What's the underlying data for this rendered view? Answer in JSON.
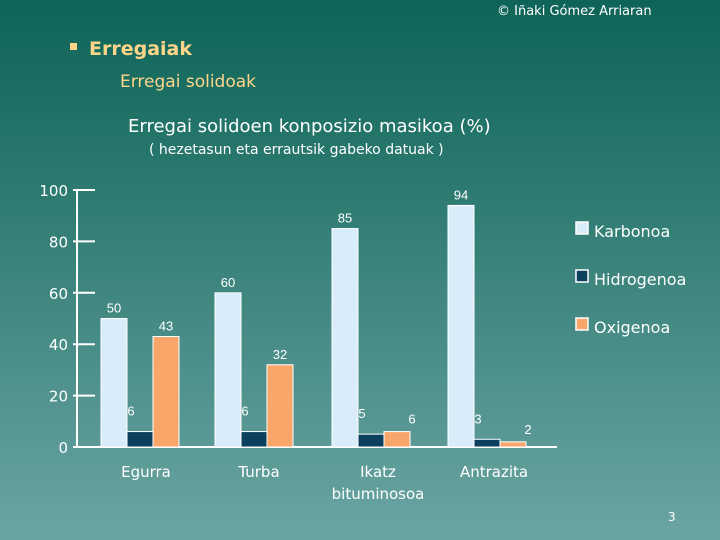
{
  "header": {
    "copyright": "© Iñaki Gómez Arriaran",
    "section": "Erregaiak",
    "subsection": "Erregai solidoak",
    "page_number": "3"
  },
  "chart_data": {
    "type": "bar",
    "title": "Erregai solidoen konposizio masikoa (%)",
    "subtitle": "( hezetasun eta errautsik gabeko datuak )",
    "categories": [
      [
        "Egurra"
      ],
      [
        "Turba"
      ],
      [
        "Ikatz",
        "bituminosoa"
      ],
      [
        "Antrazita"
      ]
    ],
    "ylim": [
      0,
      100
    ],
    "yticks": [
      "0",
      "20",
      "40",
      "60",
      "80",
      "100"
    ],
    "legend_position": "right",
    "series": [
      {
        "name": "Karbonoa",
        "color": "#d8ecfa",
        "values": [
          50,
          60,
          85,
          94
        ],
        "labels": [
          "50",
          "60",
          "85",
          "94"
        ]
      },
      {
        "name": "Hidrogenoa",
        "color": "#0b3f5e",
        "values": [
          6,
          6,
          5,
          3
        ],
        "labels": [
          "6",
          "6",
          "5",
          "3"
        ]
      },
      {
        "name": "Oxigenoa",
        "color": "#f9a66b",
        "values": [
          43,
          32,
          6,
          2
        ],
        "labels": [
          "43",
          "32",
          "6",
          "2"
        ]
      }
    ]
  }
}
